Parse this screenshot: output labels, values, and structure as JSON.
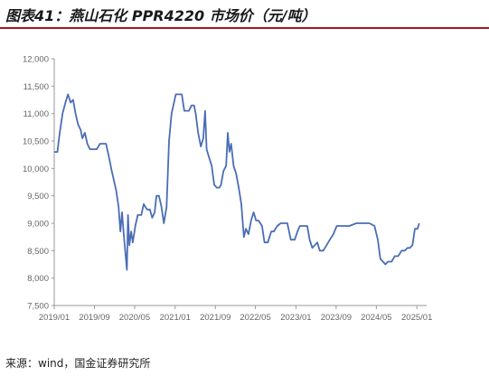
{
  "title": "图表41：燕山石化 PPR4220 市场价（元/吨）",
  "source": "来源：wind，国金证券研究所",
  "colors": {
    "line": "#4a6db5",
    "axis": "#9a9a9a",
    "rule": "#9e1b20"
  },
  "chart_data": {
    "type": "line",
    "title": "图表41：燕山石化 PPR4220 市场价（元/吨）",
    "xlabel": "",
    "ylabel": "",
    "ylim": [
      7500,
      12000
    ],
    "yticks": [
      7500,
      8000,
      8500,
      9000,
      9500,
      10000,
      10500,
      11000,
      11500,
      12000
    ],
    "ytick_labels": [
      "7,500",
      "8,000",
      "8,500",
      "9,000",
      "9,500",
      "10,000",
      "10,500",
      "11,000",
      "11,500",
      "12,000"
    ],
    "xlim": [
      "2019-01",
      "2025-03"
    ],
    "xticks": [
      "2019-01",
      "2019-09",
      "2020-05",
      "2021-01",
      "2021-09",
      "2022-05",
      "2023-01",
      "2023-09",
      "2024-05",
      "2025-01"
    ],
    "xtick_labels": [
      "2019/01",
      "2019/09",
      "2020/05",
      "2021/01",
      "2021/09",
      "2022/05",
      "2023/01",
      "2023/09",
      "2024/05",
      "2025/01"
    ],
    "grid": false,
    "series": [
      {
        "color": "#4a6db5",
        "points": [
          [
            "2019-01-01",
            10300
          ],
          [
            "2019-01-20",
            10300
          ],
          [
            "2019-02-01",
            10600
          ],
          [
            "2019-02-20",
            11000
          ],
          [
            "2019-03-10",
            11200
          ],
          [
            "2019-03-25",
            11350
          ],
          [
            "2019-04-10",
            11200
          ],
          [
            "2019-04-25",
            11250
          ],
          [
            "2019-05-10",
            11000
          ],
          [
            "2019-05-25",
            10800
          ],
          [
            "2019-06-10",
            10700
          ],
          [
            "2019-06-20",
            10550
          ],
          [
            "2019-07-05",
            10650
          ],
          [
            "2019-07-20",
            10450
          ],
          [
            "2019-08-05",
            10350
          ],
          [
            "2019-08-25",
            10350
          ],
          [
            "2019-09-15",
            10350
          ],
          [
            "2019-10-05",
            10450
          ],
          [
            "2019-11-10",
            10450
          ],
          [
            "2019-11-25",
            10250
          ],
          [
            "2019-12-15",
            9950
          ],
          [
            "2020-01-10",
            9600
          ],
          [
            "2020-01-25",
            9300
          ],
          [
            "2020-02-05",
            8850
          ],
          [
            "2020-02-15",
            9200
          ],
          [
            "2020-02-25",
            8800
          ],
          [
            "2020-03-05",
            8500
          ],
          [
            "2020-03-15",
            8150
          ],
          [
            "2020-03-22",
            9150
          ],
          [
            "2020-03-30",
            8600
          ],
          [
            "2020-04-10",
            8850
          ],
          [
            "2020-04-20",
            8650
          ],
          [
            "2020-05-05",
            8950
          ],
          [
            "2020-05-20",
            9150
          ],
          [
            "2020-06-10",
            9150
          ],
          [
            "2020-06-25",
            9350
          ],
          [
            "2020-07-15",
            9250
          ],
          [
            "2020-08-01",
            9250
          ],
          [
            "2020-08-15",
            9100
          ],
          [
            "2020-08-30",
            9200
          ],
          [
            "2020-09-10",
            9500
          ],
          [
            "2020-09-25",
            9500
          ],
          [
            "2020-10-10",
            9300
          ],
          [
            "2020-10-25",
            9000
          ],
          [
            "2020-11-10",
            9300
          ],
          [
            "2020-11-25",
            10500
          ],
          [
            "2020-12-10",
            11000
          ],
          [
            "2021-01-05",
            11350
          ],
          [
            "2021-02-10",
            11350
          ],
          [
            "2021-02-25",
            11050
          ],
          [
            "2021-03-25",
            11050
          ],
          [
            "2021-04-10",
            11150
          ],
          [
            "2021-04-25",
            11150
          ],
          [
            "2021-05-05",
            11000
          ],
          [
            "2021-05-20",
            10650
          ],
          [
            "2021-06-05",
            10400
          ],
          [
            "2021-06-20",
            10550
          ],
          [
            "2021-07-01",
            11050
          ],
          [
            "2021-07-10",
            10350
          ],
          [
            "2021-07-25",
            10200
          ],
          [
            "2021-08-10",
            10050
          ],
          [
            "2021-08-25",
            9700
          ],
          [
            "2021-09-10",
            9650
          ],
          [
            "2021-09-25",
            9650
          ],
          [
            "2021-10-05",
            9700
          ],
          [
            "2021-10-20",
            9950
          ],
          [
            "2021-11-05",
            10050
          ],
          [
            "2021-11-15",
            10650
          ],
          [
            "2021-11-25",
            10300
          ],
          [
            "2021-12-05",
            10450
          ],
          [
            "2021-12-20",
            10050
          ],
          [
            "2022-01-05",
            9900
          ],
          [
            "2022-01-20",
            9650
          ],
          [
            "2022-02-05",
            9350
          ],
          [
            "2022-02-20",
            8750
          ],
          [
            "2022-03-05",
            8900
          ],
          [
            "2022-03-20",
            8800
          ],
          [
            "2022-04-05",
            9050
          ],
          [
            "2022-04-20",
            9200
          ],
          [
            "2022-05-05",
            9050
          ],
          [
            "2022-05-20",
            9050
          ],
          [
            "2022-06-10",
            8950
          ],
          [
            "2022-06-25",
            8650
          ],
          [
            "2022-07-15",
            8650
          ],
          [
            "2022-08-05",
            8850
          ],
          [
            "2022-08-20",
            8850
          ],
          [
            "2022-09-10",
            8950
          ],
          [
            "2022-10-01",
            9000
          ],
          [
            "2022-11-10",
            9000
          ],
          [
            "2022-12-01",
            8700
          ],
          [
            "2022-12-25",
            8700
          ],
          [
            "2023-01-10",
            8850
          ],
          [
            "2023-01-25",
            8950
          ],
          [
            "2023-03-10",
            8950
          ],
          [
            "2023-03-25",
            8700
          ],
          [
            "2023-04-10",
            8550
          ],
          [
            "2023-04-25",
            8600
          ],
          [
            "2023-05-10",
            8650
          ],
          [
            "2023-05-25",
            8500
          ],
          [
            "2023-06-15",
            8500
          ],
          [
            "2023-07-05",
            8600
          ],
          [
            "2023-07-25",
            8700
          ],
          [
            "2023-08-15",
            8800
          ],
          [
            "2023-09-05",
            8950
          ],
          [
            "2023-09-25",
            8950
          ],
          [
            "2023-11-01",
            8950
          ],
          [
            "2023-11-20",
            8950
          ],
          [
            "2024-01-01",
            9000
          ],
          [
            "2024-02-10",
            9000
          ],
          [
            "2024-03-20",
            9000
          ],
          [
            "2024-04-20",
            8950
          ],
          [
            "2024-05-10",
            8700
          ],
          [
            "2024-05-25",
            8350
          ],
          [
            "2024-06-10",
            8300
          ],
          [
            "2024-06-25",
            8250
          ],
          [
            "2024-07-10",
            8300
          ],
          [
            "2024-08-01",
            8300
          ],
          [
            "2024-08-20",
            8400
          ],
          [
            "2024-09-10",
            8400
          ],
          [
            "2024-10-01",
            8500
          ],
          [
            "2024-10-20",
            8500
          ],
          [
            "2024-11-05",
            8550
          ],
          [
            "2024-11-20",
            8550
          ],
          [
            "2024-12-05",
            8600
          ],
          [
            "2024-12-20",
            8900
          ],
          [
            "2025-01-05",
            8900
          ],
          [
            "2025-01-15",
            9000
          ]
        ]
      }
    ]
  }
}
